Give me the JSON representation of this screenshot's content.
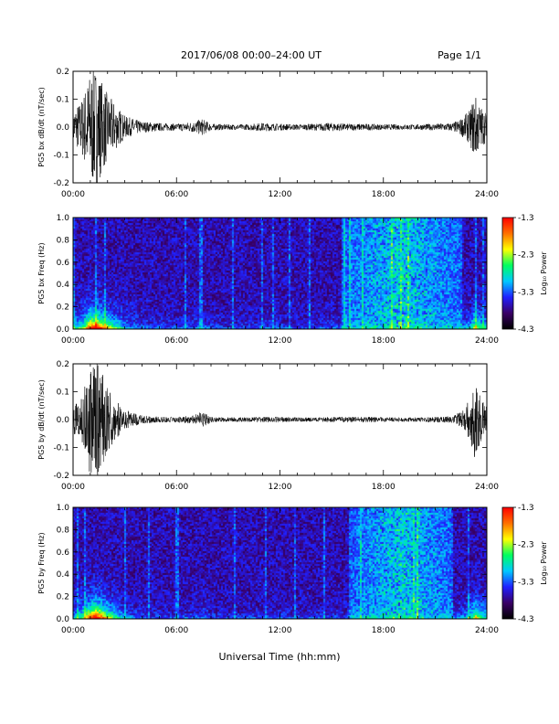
{
  "header": {
    "title": "2017/06/08  00:00–24:00 UT",
    "page": "Page 1/1"
  },
  "x_axis": {
    "label": "Universal Time (hh:mm)",
    "ticks": [
      "00:00",
      "06:00",
      "12:00",
      "18:00",
      "24:00"
    ],
    "range_hours": [
      0,
      24
    ]
  },
  "colorbar": {
    "label": "Log₁₀ Power",
    "ticks": [
      "-1.3",
      "-2.3",
      "-3.3",
      "-4.3"
    ],
    "range": [
      -4.3,
      -1.3
    ],
    "colors": [
      "#000000",
      "#3a0066",
      "#2020ff",
      "#00c8ff",
      "#00ff60",
      "#ffff00",
      "#ff7000",
      "#ff0000"
    ]
  },
  "chart_data": [
    {
      "type": "line",
      "id": "bx-waveform",
      "ylabel": "PG5 bx dB/dt (nT/sec)",
      "ylim": [
        -0.2,
        0.2
      ],
      "yticks": [
        "0.2",
        "0.1",
        "0.0",
        "-0.1",
        "-0.2"
      ],
      "envelope": {
        "x_hours": [
          0,
          0.5,
          1,
          1.3,
          2,
          2.5,
          3,
          4,
          5,
          6,
          7,
          7.5,
          8,
          9,
          10,
          11,
          12,
          13,
          14,
          15,
          16,
          17,
          18,
          19,
          20,
          21,
          22,
          22.5,
          23,
          23.3,
          23.6,
          24
        ],
        "amplitude": [
          0.06,
          0.1,
          0.2,
          0.22,
          0.12,
          0.08,
          0.04,
          0.02,
          0.015,
          0.012,
          0.02,
          0.03,
          0.012,
          0.01,
          0.01,
          0.015,
          0.012,
          0.01,
          0.012,
          0.015,
          0.012,
          0.012,
          0.01,
          0.01,
          0.01,
          0.012,
          0.015,
          0.03,
          0.06,
          0.12,
          0.08,
          0.05
        ]
      }
    },
    {
      "type": "heatmap",
      "id": "bx-spectrogram",
      "ylabel": "PG5 bx Freq (Hz)",
      "ylim": [
        0,
        1.0
      ],
      "yticks": [
        "1.0",
        "0.8",
        "0.6",
        "0.4",
        "0.2",
        "0.0"
      ],
      "zrange": [
        -4.3,
        -1.3
      ],
      "enhanced_band_hours": [
        15.5,
        22.5
      ]
    },
    {
      "type": "line",
      "id": "by-waveform",
      "ylabel": "PG5 by dB/dt (nT/sec)",
      "ylim": [
        -0.2,
        0.2
      ],
      "yticks": [
        "0.2",
        "0.1",
        "0.0",
        "-0.1",
        "-0.2"
      ],
      "envelope": {
        "x_hours": [
          0,
          0.5,
          1,
          1.3,
          2,
          2.5,
          3,
          4,
          5,
          6,
          7,
          7.5,
          8,
          9,
          10,
          11,
          12,
          13,
          14,
          15,
          16,
          17,
          18,
          19,
          20,
          21,
          22,
          22.5,
          23,
          23.3,
          23.6,
          24
        ],
        "amplitude": [
          0.05,
          0.09,
          0.2,
          0.22,
          0.12,
          0.07,
          0.035,
          0.015,
          0.01,
          0.01,
          0.015,
          0.03,
          0.01,
          0.008,
          0.008,
          0.01,
          0.01,
          0.008,
          0.008,
          0.01,
          0.01,
          0.01,
          0.008,
          0.008,
          0.008,
          0.01,
          0.012,
          0.03,
          0.07,
          0.14,
          0.09,
          0.05
        ]
      }
    },
    {
      "type": "heatmap",
      "id": "by-spectrogram",
      "ylabel": "PG5 by Freq (Hz)",
      "ylim": [
        0,
        1.0
      ],
      "yticks": [
        "1.0",
        "0.8",
        "0.6",
        "0.4",
        "0.2",
        "0.0"
      ],
      "zrange": [
        -4.3,
        -1.3
      ],
      "enhanced_band_hours": [
        16.0,
        22.0
      ]
    }
  ]
}
